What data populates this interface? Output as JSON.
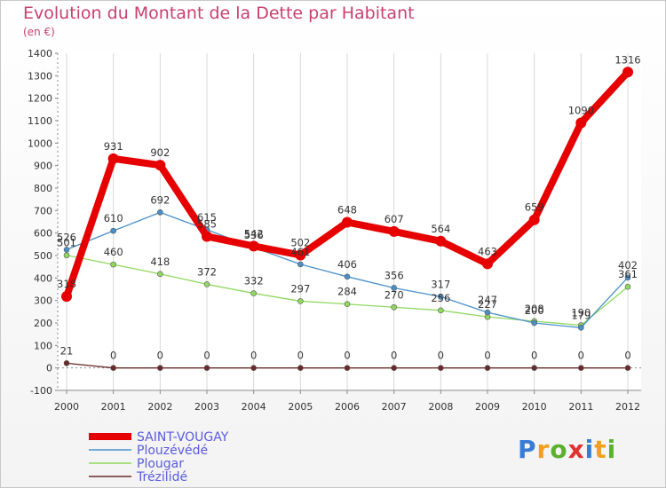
{
  "title": "Evolution du Montant de la Dette par Habitant",
  "subtitle": "(en €)",
  "logo": {
    "text": "Proxiti",
    "colors": [
      "#3a7bd5",
      "#f0a020",
      "#5cb030",
      "#e03030",
      "#3a7bd5",
      "#f0a020",
      "#5cb030"
    ]
  },
  "chart_data": {
    "type": "line",
    "title": "Evolution du Montant de la Dette par Habitant",
    "ylabel": "(en €)",
    "x": [
      "2000",
      "2001",
      "2002",
      "2003",
      "2004",
      "2005",
      "2006",
      "2007",
      "2008",
      "2009",
      "2010",
      "2011",
      "2012"
    ],
    "ylim": [
      -100,
      1400
    ],
    "yticks": [
      -100,
      0,
      100,
      200,
      300,
      400,
      500,
      600,
      700,
      800,
      900,
      1000,
      1100,
      1200,
      1300,
      1400
    ],
    "grid": "vertical",
    "legend_position": "bottom-left",
    "series": [
      {
        "name": "SAINT-VOUGAY",
        "color": "#e60000",
        "values": [
          318,
          931,
          902,
          585,
          542,
          502,
          648,
          607,
          564,
          463,
          659,
          1090,
          1316
        ]
      },
      {
        "name": "Plouzévédé",
        "color": "#4a90c8",
        "values": [
          526,
          610,
          692,
          615,
          536,
          461,
          406,
          356,
          317,
          247,
          200,
          179,
          402
        ]
      },
      {
        "name": "Plougar",
        "color": "#90d860",
        "values": [
          501,
          460,
          418,
          372,
          332,
          297,
          284,
          270,
          256,
          227,
          208,
          190,
          361
        ]
      },
      {
        "name": "Trézilidé",
        "color": "#6b2a2a",
        "values": [
          21,
          0,
          0,
          0,
          0,
          0,
          0,
          0,
          0,
          0,
          0,
          0,
          0
        ]
      }
    ]
  }
}
